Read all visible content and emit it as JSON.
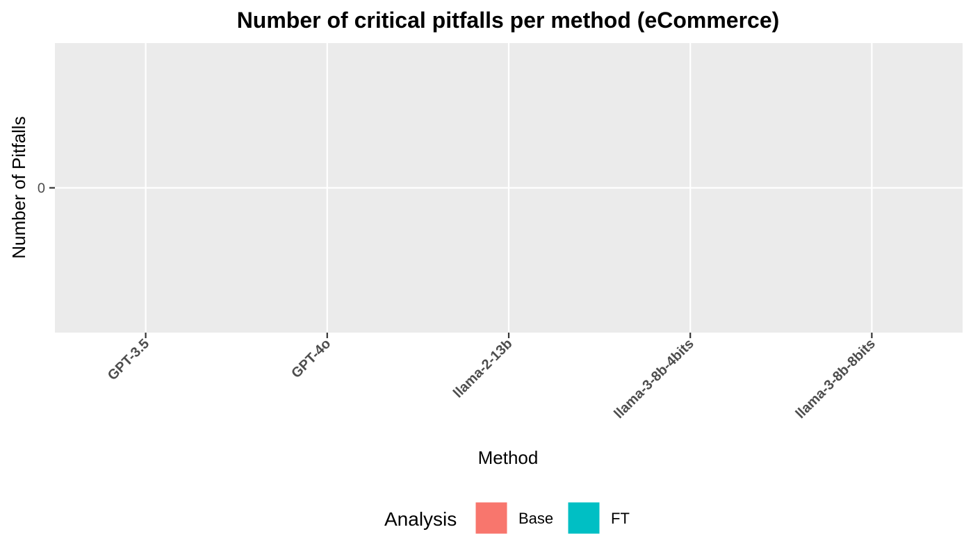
{
  "chart_data": {
    "type": "bar",
    "title": "Number of critical pitfalls per method (eCommerce)",
    "xlabel": "Method",
    "ylabel": "Number of Pitfalls",
    "categories": [
      "GPT-3.5",
      "GPT-4o",
      "llama-2-13b",
      "llama-3-8b-4bits",
      "llama-3-8b-8bits"
    ],
    "y_ticks": [
      "0"
    ],
    "ylim": [
      -0.05,
      0.05
    ],
    "grid": true,
    "legend": {
      "title": "Analysis",
      "placement": "bottom"
    },
    "series": [
      {
        "name": "Base",
        "color": "#F8766D",
        "values": [
          0,
          0,
          0,
          0,
          0
        ]
      },
      {
        "name": "FT",
        "color": "#00BFC4",
        "values": [
          0,
          0,
          0,
          0,
          0
        ]
      }
    ],
    "panel_background": "#EBEBEB",
    "grid_color": "#FFFFFF"
  }
}
